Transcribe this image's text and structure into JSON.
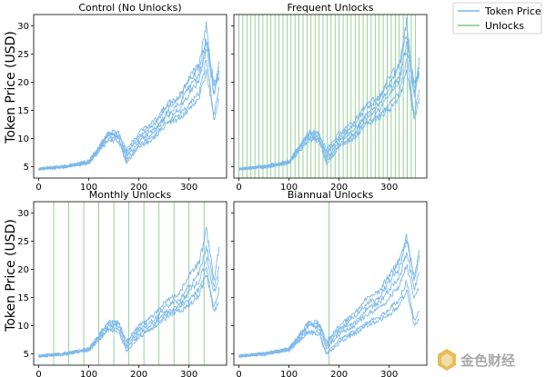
{
  "figure": {
    "ylabel": "Token Price (USD)",
    "legend": {
      "placement": "top-right outside",
      "entries": [
        {
          "label": "Token Price",
          "color": "#7bb8ea"
        },
        {
          "label": "Unlocks",
          "color": "#7cc87c"
        }
      ]
    },
    "watermark": "金色财经",
    "colors": {
      "price": "#7bb8ea",
      "unlock": "#7cc87c"
    }
  },
  "chart_data": [
    {
      "type": "line",
      "title": "Control (No Unlocks)",
      "xlim": [
        -10,
        375
      ],
      "ylim": [
        3,
        32
      ],
      "xticks": [
        0,
        100,
        200,
        300
      ],
      "yticks": [
        5,
        10,
        15,
        20,
        25,
        30
      ],
      "unlocks": [],
      "x": [
        0,
        50,
        100,
        140,
        160,
        175,
        200,
        230,
        255,
        280,
        300,
        320,
        335,
        350,
        360
      ],
      "series": [
        {
          "values": [
            4.6,
            5.0,
            5.8,
            10.5,
            10.2,
            6.5,
            9.5,
            11.0,
            14.0,
            15.0,
            18.0,
            20.0,
            27.0,
            20.0,
            21.0
          ]
        },
        {
          "values": [
            4.6,
            5.1,
            5.9,
            11.0,
            10.8,
            7.0,
            10.5,
            12.5,
            15.5,
            17.0,
            21.0,
            23.0,
            30.5,
            17.0,
            24.0
          ]
        },
        {
          "values": [
            4.6,
            4.9,
            5.7,
            10.0,
            10.0,
            6.0,
            9.0,
            10.5,
            13.0,
            14.0,
            16.0,
            18.0,
            24.0,
            14.0,
            19.0
          ]
        },
        {
          "values": [
            4.6,
            5.0,
            5.8,
            10.8,
            10.5,
            7.5,
            10.0,
            11.5,
            14.5,
            16.0,
            19.0,
            21.0,
            26.0,
            18.0,
            22.0
          ]
        },
        {
          "values": [
            4.6,
            5.0,
            5.6,
            9.8,
            9.5,
            5.5,
            8.5,
            10.0,
            12.5,
            13.5,
            15.0,
            17.0,
            22.0,
            13.5,
            17.0
          ]
        },
        {
          "values": [
            4.6,
            5.1,
            6.0,
            11.2,
            11.0,
            8.0,
            11.0,
            13.0,
            16.0,
            17.5,
            20.0,
            22.5,
            28.0,
            19.0,
            23.0
          ]
        }
      ]
    },
    {
      "type": "line",
      "title": "Frequent Unlocks",
      "xlim": [
        -10,
        375
      ],
      "ylim": [
        3,
        32
      ],
      "xticks": [
        0,
        100,
        200,
        300
      ],
      "yticks": [
        5,
        10,
        15,
        20,
        25,
        30
      ],
      "unlocks": [
        0,
        8,
        16,
        24,
        32,
        40,
        48,
        56,
        64,
        72,
        80,
        88,
        96,
        104,
        112,
        120,
        128,
        136,
        144,
        152,
        160,
        168,
        176,
        184,
        192,
        200,
        208,
        216,
        224,
        232,
        240,
        248,
        256,
        264,
        272,
        280,
        288,
        296,
        304,
        312,
        320,
        328,
        336,
        344,
        352
      ],
      "x": [
        0,
        50,
        100,
        140,
        160,
        175,
        200,
        230,
        255,
        280,
        300,
        320,
        335,
        350,
        360
      ],
      "series": [
        {
          "values": [
            4.6,
            5.0,
            5.8,
            10.5,
            10.2,
            6.5,
            9.5,
            11.0,
            14.0,
            15.0,
            18.0,
            20.0,
            27.0,
            20.0,
            21.0
          ]
        },
        {
          "values": [
            4.6,
            5.1,
            5.9,
            11.0,
            10.8,
            7.0,
            10.5,
            12.5,
            15.5,
            17.0,
            21.0,
            23.0,
            31.0,
            17.0,
            24.0
          ]
        },
        {
          "values": [
            4.6,
            4.9,
            5.7,
            10.0,
            10.0,
            6.0,
            9.0,
            10.5,
            13.0,
            14.0,
            16.0,
            18.0,
            24.0,
            14.0,
            19.0
          ]
        },
        {
          "values": [
            4.6,
            5.0,
            5.8,
            10.8,
            10.5,
            7.5,
            10.0,
            11.5,
            14.5,
            16.0,
            19.0,
            21.0,
            26.0,
            18.0,
            22.0
          ]
        },
        {
          "values": [
            4.6,
            5.0,
            5.6,
            9.8,
            9.5,
            5.5,
            8.5,
            10.0,
            12.5,
            13.5,
            15.0,
            17.0,
            22.0,
            13.5,
            17.0
          ]
        },
        {
          "values": [
            4.6,
            5.1,
            6.0,
            11.2,
            11.0,
            8.0,
            11.0,
            13.0,
            16.0,
            17.5,
            20.0,
            22.5,
            28.5,
            19.0,
            23.0
          ]
        }
      ]
    },
    {
      "type": "line",
      "title": "Monthly Unlocks",
      "xlim": [
        -10,
        375
      ],
      "ylim": [
        3,
        32
      ],
      "xticks": [
        0,
        100,
        200,
        300
      ],
      "yticks": [
        5,
        10,
        15,
        20,
        25,
        30
      ],
      "unlocks": [
        30,
        60,
        90,
        120,
        150,
        180,
        210,
        240,
        270,
        300,
        330
      ],
      "x": [
        0,
        50,
        100,
        140,
        160,
        175,
        200,
        230,
        255,
        280,
        300,
        320,
        335,
        350,
        360
      ],
      "series": [
        {
          "values": [
            4.6,
            5.0,
            5.8,
            10.0,
            10.0,
            6.5,
            9.0,
            10.5,
            12.5,
            13.5,
            16.0,
            18.0,
            22.0,
            16.0,
            18.5
          ]
        },
        {
          "values": [
            4.6,
            5.1,
            5.9,
            10.8,
            10.5,
            7.0,
            10.0,
            12.0,
            14.5,
            15.5,
            19.0,
            21.0,
            27.0,
            18.0,
            24.0
          ]
        },
        {
          "values": [
            4.6,
            4.9,
            5.7,
            9.6,
            9.5,
            6.0,
            8.5,
            10.0,
            12.0,
            13.0,
            14.5,
            16.5,
            20.0,
            13.0,
            16.5
          ]
        },
        {
          "values": [
            4.6,
            5.0,
            5.8,
            10.5,
            10.2,
            7.2,
            9.5,
            11.0,
            13.5,
            14.5,
            17.0,
            19.5,
            24.0,
            17.0,
            20.0
          ]
        },
        {
          "values": [
            4.6,
            5.0,
            5.6,
            9.3,
            9.0,
            5.5,
            8.0,
            9.5,
            11.5,
            12.5,
            13.5,
            15.5,
            19.0,
            12.5,
            14.0
          ]
        }
      ]
    },
    {
      "type": "line",
      "title": "Biannual Unlocks",
      "xlim": [
        -10,
        375
      ],
      "ylim": [
        3,
        32
      ],
      "xticks": [
        0,
        100,
        200,
        300
      ],
      "yticks": [
        5,
        10,
        15,
        20,
        25,
        30
      ],
      "unlocks": [
        180
      ],
      "x": [
        0,
        50,
        100,
        140,
        160,
        175,
        200,
        230,
        255,
        280,
        300,
        320,
        335,
        350,
        360
      ],
      "series": [
        {
          "values": [
            4.6,
            5.0,
            5.8,
            10.0,
            9.5,
            6.0,
            8.5,
            10.0,
            12.0,
            13.0,
            15.0,
            17.0,
            21.0,
            15.0,
            17.0
          ]
        },
        {
          "values": [
            4.6,
            5.1,
            5.9,
            10.5,
            10.2,
            6.8,
            9.5,
            11.5,
            14.0,
            15.0,
            18.0,
            20.0,
            26.0,
            18.0,
            22.0
          ]
        },
        {
          "values": [
            4.6,
            4.9,
            5.7,
            9.2,
            9.0,
            5.0,
            7.5,
            9.0,
            10.5,
            11.5,
            13.0,
            14.5,
            18.0,
            11.0,
            12.5
          ]
        },
        {
          "values": [
            4.6,
            5.0,
            5.8,
            10.2,
            9.8,
            6.5,
            9.0,
            10.5,
            13.0,
            14.0,
            16.5,
            18.5,
            23.0,
            16.5,
            19.5
          ]
        },
        {
          "values": [
            4.6,
            5.0,
            5.6,
            8.8,
            8.5,
            4.8,
            7.0,
            8.5,
            10.0,
            11.0,
            12.0,
            13.5,
            16.5,
            10.0,
            11.0
          ]
        },
        {
          "values": [
            4.6,
            5.1,
            6.0,
            10.8,
            10.5,
            7.2,
            10.0,
            12.0,
            15.0,
            16.0,
            19.0,
            21.5,
            25.0,
            18.5,
            23.0
          ]
        }
      ]
    }
  ]
}
